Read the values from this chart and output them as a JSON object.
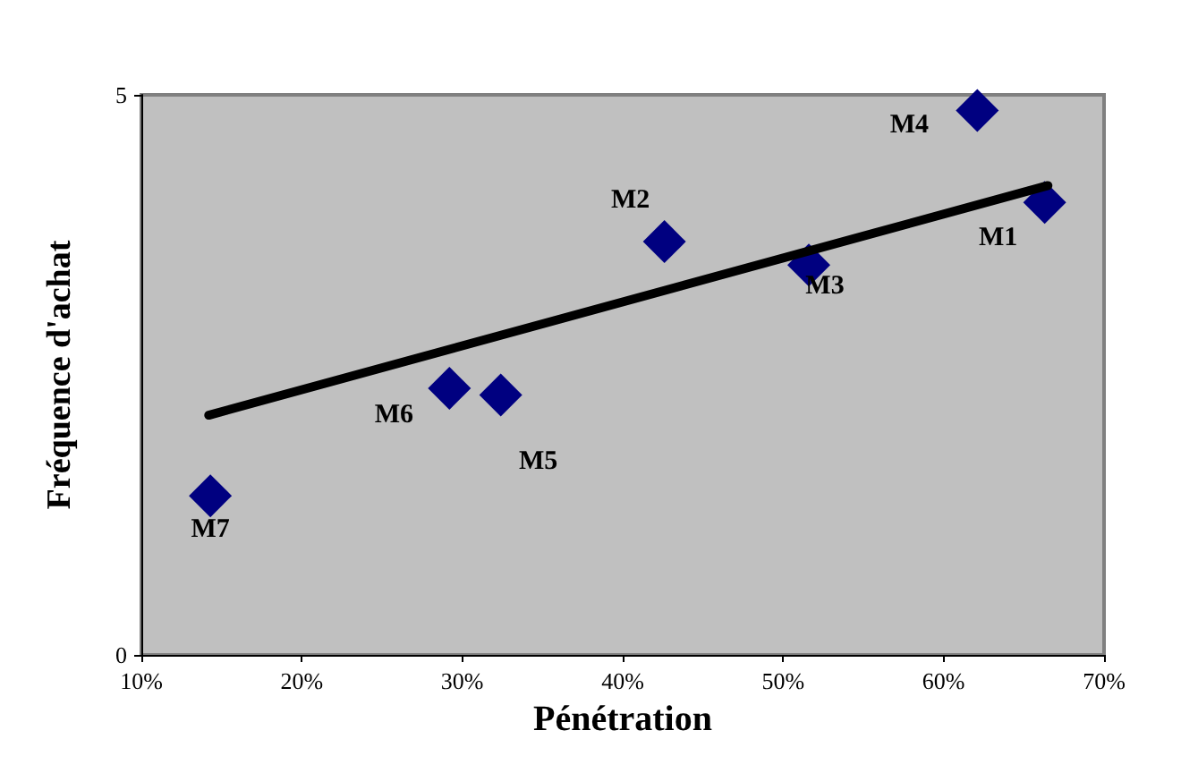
{
  "chart_data": {
    "type": "scatter",
    "xlabel": "Pénétration",
    "ylabel": "Fréquence d'achat",
    "xlim": [
      10,
      70
    ],
    "xticks": [
      {
        "value": 10,
        "label": "10%"
      },
      {
        "value": 20,
        "label": "20%"
      },
      {
        "value": 30,
        "label": "30%"
      },
      {
        "value": 40,
        "label": "40%"
      },
      {
        "value": 50,
        "label": "50%"
      },
      {
        "value": 60,
        "label": "60%"
      },
      {
        "value": 70,
        "label": "70%"
      }
    ],
    "ylim": [
      0,
      5
    ],
    "yticks": [
      0,
      5
    ],
    "marker": "diamond",
    "series": [
      {
        "color": "#000080",
        "x": [
          66.3,
          42.6,
          51.6,
          62.1,
          32.4,
          29.2,
          14.3
        ],
        "values": [
          4.04,
          3.69,
          3.48,
          4.86,
          2.32,
          2.38,
          1.42
        ]
      },
      {
        "type": "line",
        "color": "#000000",
        "marker": "none",
        "x": [
          14.2,
          66.5
        ],
        "values": [
          2.14,
          4.19
        ]
      }
    ],
    "annotations": [
      {
        "text": "M1",
        "x": 66.3,
        "y": 4.04
      },
      {
        "text": "M2",
        "x": 42.6,
        "y": 3.69
      },
      {
        "text": "M3",
        "x": 51.6,
        "y": 3.48
      },
      {
        "text": "M4",
        "x": 62.1,
        "y": 4.86
      },
      {
        "text": "M5",
        "x": 32.4,
        "y": 2.32
      },
      {
        "text": "M6",
        "x": 29.2,
        "y": 2.38
      },
      {
        "text": "M7",
        "x": 14.3,
        "y": 1.42
      }
    ]
  }
}
